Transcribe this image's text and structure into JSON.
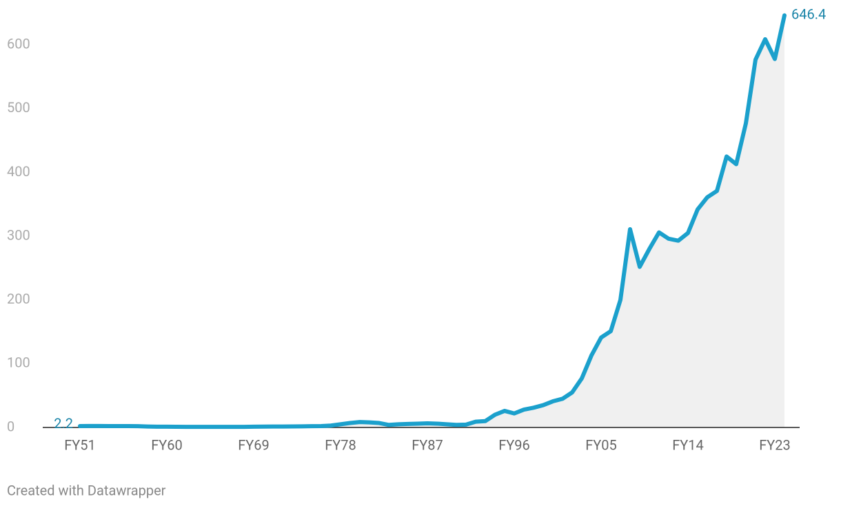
{
  "chart_data": {
    "type": "line",
    "categories": [
      "FY51",
      null,
      null,
      null,
      null,
      null,
      null,
      null,
      null,
      "FY60",
      null,
      null,
      null,
      null,
      null,
      null,
      null,
      null,
      "FY69",
      null,
      null,
      null,
      null,
      null,
      null,
      null,
      null,
      "FY78",
      null,
      null,
      null,
      null,
      null,
      null,
      null,
      null,
      "FY87",
      null,
      null,
      null,
      null,
      null,
      null,
      null,
      null,
      "FY96",
      null,
      null,
      null,
      null,
      null,
      null,
      null,
      null,
      "FY05",
      null,
      null,
      null,
      null,
      null,
      null,
      null,
      null,
      "FY14",
      null,
      null,
      null,
      null,
      null,
      null,
      null,
      null,
      "FY23",
      null
    ],
    "series": [
      {
        "name": null,
        "color": "#1ba0cc",
        "values": [
          2.2,
          2.3,
          2.3,
          2.2,
          2.2,
          2.1,
          2,
          1.5,
          1.2,
          1.2,
          1.1,
          1,
          1,
          1,
          1,
          1,
          1,
          1,
          1.2,
          1.3,
          1.5,
          1.5,
          1.6,
          1.8,
          2,
          2.2,
          3,
          5,
          7,
          8.5,
          8,
          7,
          4,
          5,
          5.5,
          6,
          6.5,
          6,
          5,
          4,
          4.5,
          9,
          10,
          20,
          26,
          22,
          28,
          31,
          35,
          41,
          45,
          55,
          77,
          113,
          141,
          151,
          200,
          311,
          252,
          280,
          306,
          296,
          293,
          305,
          342,
          361,
          371,
          425,
          413,
          477,
          577,
          609,
          578,
          646.4
        ]
      }
    ],
    "ylim": [
      0,
      650
    ],
    "yticks": [
      0,
      100,
      200,
      300,
      400,
      500,
      600
    ],
    "grid": false,
    "area": true,
    "credit": "Created with Datawrapper"
  }
}
